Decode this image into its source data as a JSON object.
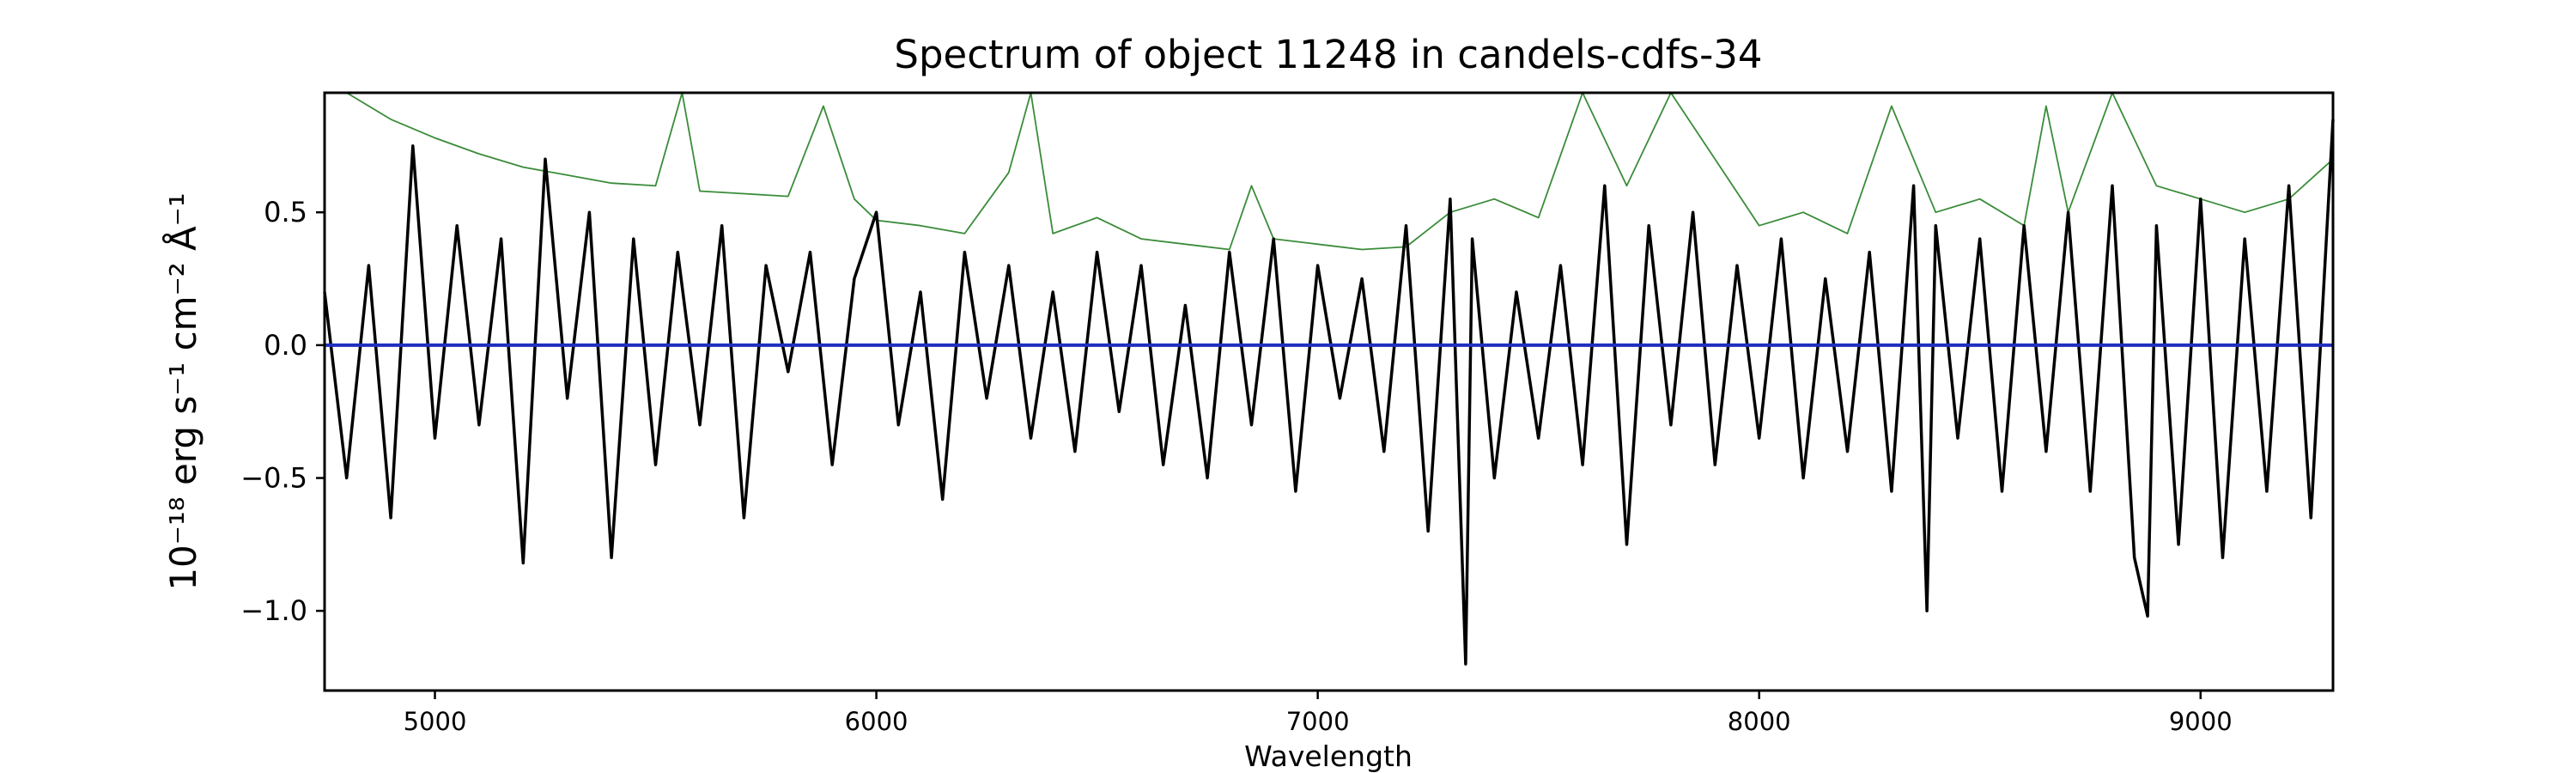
{
  "chart_data": {
    "type": "line",
    "title": "Spectrum of object 11248 in candels-cdfs-34",
    "xlabel": "Wavelength",
    "ylabel": "10⁻¹⁸ erg s⁻¹ cm⁻² Å⁻¹",
    "xlim": [
      4750,
      9300
    ],
    "ylim": [
      -1.3,
      0.95
    ],
    "x_ticks": [
      5000,
      6000,
      7000,
      8000,
      9000
    ],
    "y_ticks": [
      -1.0,
      -0.5,
      0.0,
      0.5
    ],
    "x_tick_labels": [
      "5000",
      "6000",
      "7000",
      "8000",
      "9000"
    ],
    "y_tick_labels": [
      "−1.0",
      "−0.5",
      "0.0",
      "0.5"
    ],
    "grid": false,
    "legend": "none",
    "series": [
      {
        "role": "flux",
        "color": "#000000",
        "x": [
          4750,
          4800,
          4850,
          4900,
          4950,
          5000,
          5050,
          5100,
          5150,
          5200,
          5250,
          5300,
          5350,
          5400,
          5450,
          5500,
          5550,
          5600,
          5650,
          5700,
          5750,
          5800,
          5850,
          5900,
          5950,
          6000,
          6050,
          6100,
          6150,
          6200,
          6250,
          6300,
          6350,
          6400,
          6450,
          6500,
          6550,
          6600,
          6650,
          6700,
          6750,
          6800,
          6850,
          6900,
          6950,
          7000,
          7050,
          7100,
          7150,
          7200,
          7250,
          7300,
          7335,
          7350,
          7400,
          7450,
          7500,
          7550,
          7600,
          7650,
          7700,
          7750,
          7800,
          7850,
          7900,
          7950,
          8000,
          8050,
          8100,
          8150,
          8200,
          8250,
          8300,
          8350,
          8380,
          8400,
          8450,
          8500,
          8550,
          8600,
          8650,
          8700,
          8750,
          8800,
          8850,
          8880,
          8900,
          8950,
          9000,
          9050,
          9100,
          9150,
          9200,
          9250,
          9300
        ],
        "y": [
          0.2,
          -0.5,
          0.3,
          -0.65,
          0.75,
          -0.35,
          0.45,
          -0.3,
          0.4,
          -0.82,
          0.7,
          -0.2,
          0.5,
          -0.8,
          0.4,
          -0.45,
          0.35,
          -0.3,
          0.45,
          -0.65,
          0.3,
          -0.1,
          0.35,
          -0.45,
          0.25,
          0.5,
          -0.3,
          0.2,
          -0.58,
          0.35,
          -0.2,
          0.3,
          -0.35,
          0.2,
          -0.4,
          0.35,
          -0.25,
          0.3,
          -0.45,
          0.15,
          -0.5,
          0.35,
          -0.3,
          0.4,
          -0.55,
          0.3,
          -0.2,
          0.25,
          -0.4,
          0.45,
          -0.7,
          0.55,
          -1.2,
          0.4,
          -0.5,
          0.2,
          -0.35,
          0.3,
          -0.45,
          0.6,
          -0.75,
          0.45,
          -0.3,
          0.5,
          -0.45,
          0.3,
          -0.35,
          0.4,
          -0.5,
          0.25,
          -0.4,
          0.35,
          -0.55,
          0.6,
          -1.0,
          0.45,
          -0.35,
          0.4,
          -0.55,
          0.45,
          -0.4,
          0.5,
          -0.55,
          0.6,
          -0.8,
          -1.02,
          0.45,
          -0.75,
          0.55,
          -0.8,
          0.4,
          -0.55,
          0.6,
          -0.65,
          0.85
        ]
      },
      {
        "role": "error",
        "color": "#3a8c3a",
        "x": [
          4750,
          4800,
          4900,
          5000,
          5100,
          5200,
          5300,
          5400,
          5500,
          5560,
          5600,
          5700,
          5800,
          5880,
          5950,
          6000,
          6100,
          6200,
          6300,
          6350,
          6400,
          6500,
          6600,
          6700,
          6800,
          6850,
          6900,
          7000,
          7100,
          7200,
          7300,
          7400,
          7500,
          7600,
          7700,
          7800,
          7900,
          8000,
          8100,
          8200,
          8300,
          8400,
          8500,
          8600,
          8650,
          8700,
          8800,
          8900,
          9000,
          9100,
          9200,
          9300
        ],
        "y": [
          0.95,
          0.95,
          0.85,
          0.78,
          0.72,
          0.67,
          0.64,
          0.61,
          0.6,
          0.95,
          0.58,
          0.57,
          0.56,
          0.9,
          0.55,
          0.47,
          0.45,
          0.42,
          0.65,
          0.95,
          0.42,
          0.48,
          0.4,
          0.38,
          0.36,
          0.6,
          0.4,
          0.38,
          0.36,
          0.37,
          0.5,
          0.55,
          0.48,
          0.95,
          0.6,
          0.95,
          0.7,
          0.45,
          0.5,
          0.42,
          0.9,
          0.5,
          0.55,
          0.45,
          0.9,
          0.5,
          0.95,
          0.6,
          0.55,
          0.5,
          0.55,
          0.7
        ]
      },
      {
        "role": "model",
        "color": "#1f2fbf",
        "x": [
          4750,
          9300
        ],
        "y": [
          0.0,
          0.0
        ]
      }
    ]
  }
}
